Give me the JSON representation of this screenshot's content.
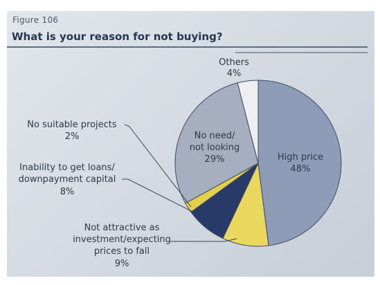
{
  "figure_label": "Figure 106",
  "chart_data": {
    "type": "pie",
    "title": "What is your reason for not buying?",
    "slices": [
      {
        "label": "High price",
        "value": 48,
        "color": "#8e9cb8"
      },
      {
        "label": "Not attractive as investment/expecting prices to fall",
        "value": 9,
        "color": "#ead75e"
      },
      {
        "label": "Inability to get loans/ downpayment capital",
        "value": 8,
        "color": "#283a6a"
      },
      {
        "label": "No suitable projects",
        "value": 2,
        "color": "#e2d04a"
      },
      {
        "label": "No need/ not looking",
        "value": 29,
        "color": "#a6aec0"
      },
      {
        "label": "Others",
        "value": 4,
        "color": "#edeff3"
      }
    ],
    "labels": {
      "high_price": {
        "l1": "High price",
        "pct": "48%"
      },
      "not_attractive": {
        "l1": "Not attractive as",
        "l2": "investment/expecting",
        "l3": "prices to fall",
        "pct": "9%"
      },
      "inability": {
        "l1": "Inability to get loans/",
        "l2": "downpayment capital",
        "pct": "8%"
      },
      "no_suitable": {
        "l1": "No suitable projects",
        "pct": "2%"
      },
      "no_need": {
        "l1": "No need/",
        "l2": "not looking",
        "pct": "29%"
      },
      "others": {
        "l1": "Others",
        "pct": "4%"
      }
    }
  }
}
